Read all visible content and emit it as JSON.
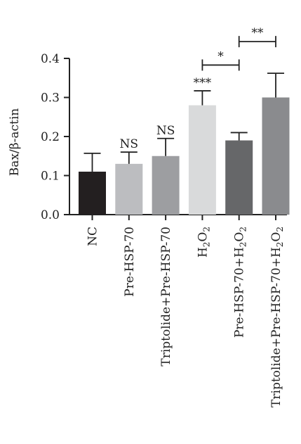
{
  "chart_data": {
    "type": "bar",
    "ylabel": "Bax/β-actin",
    "ylim": [
      0,
      0.4
    ],
    "yticks": [
      "0.0",
      "0.1",
      "0.2",
      "0.3",
      "0.4"
    ],
    "categories": [
      [
        "NC"
      ],
      [
        "Pre-HSP-70"
      ],
      [
        "Triptolide+Pre-HSP-70"
      ],
      [
        "H",
        "2",
        "O",
        "2"
      ],
      [
        "Pre-HSP-70+H",
        "2",
        "O",
        "2"
      ],
      [
        "Triptolide+Pre-HSP-70+H",
        "2",
        "O",
        "2"
      ]
    ],
    "values": [
      0.11,
      0.13,
      0.15,
      0.28,
      0.19,
      0.3
    ],
    "errors": [
      0.047,
      0.03,
      0.045,
      0.037,
      0.02,
      0.062
    ],
    "colors": [
      "#231f20",
      "#bcbdc0",
      "#9d9ea1",
      "#d9dadb",
      "#666769",
      "#8a8b8e"
    ],
    "bar_annotations": [
      "",
      "NS",
      "NS",
      "***",
      "",
      ""
    ],
    "comparisons": [
      {
        "from": 3,
        "to": 4,
        "label": "*",
        "y": 0.383
      },
      {
        "from": 4,
        "to": 5,
        "label": "**",
        "y": 0.443
      }
    ],
    "grid": false,
    "legend": "none"
  }
}
